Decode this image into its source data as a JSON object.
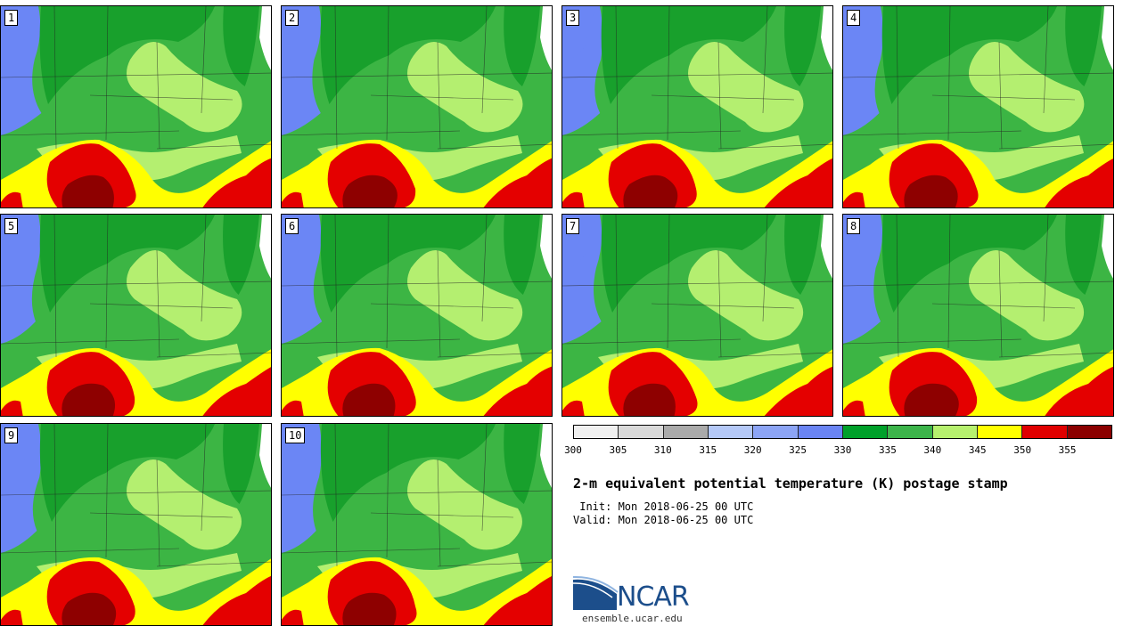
{
  "title": "2-m equivalent potential temperature (K) postage stamp",
  "init_line": " Init: Mon 2018-06-25 00 UTC",
  "valid_line": "Valid: Mon 2018-06-25 00 UTC",
  "logo_text": "NCAR",
  "logo_url": "ensemble.ucar.edu",
  "members": [
    "1",
    "2",
    "3",
    "4",
    "5",
    "6",
    "7",
    "8",
    "9",
    "10"
  ],
  "colorbar": {
    "ticks": [
      "300",
      "305",
      "310",
      "315",
      "320",
      "325",
      "330",
      "335",
      "340",
      "345",
      "350",
      "355"
    ],
    "colors": [
      "#f0f0f0",
      "#d9d9d9",
      "#aaaaaa",
      "#b4c8f7",
      "#8ca4f5",
      "#6a84f3",
      "#00a02a",
      "#3cb44a",
      "#b6f06e",
      "#ffff00",
      "#e00000",
      "#8b0000"
    ]
  },
  "colors": {
    "blue": "#6b86f5",
    "dark_green": "#18a02c",
    "green": "#3cb544",
    "light_green": "#b4ef70",
    "yellow": "#ffff00",
    "red": "#e40000",
    "dark_red": "#8e0000",
    "lake": "#ffffff"
  }
}
